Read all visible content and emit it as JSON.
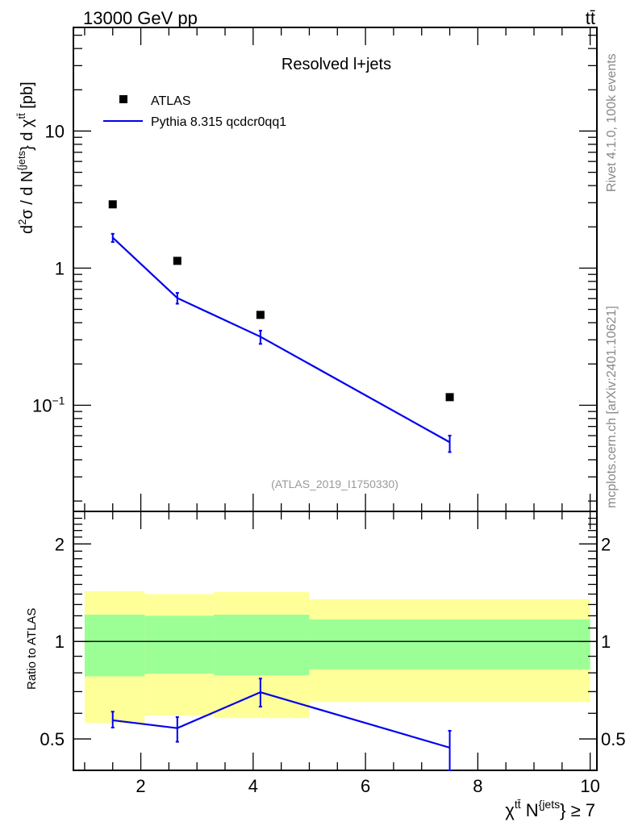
{
  "header": {
    "left": "13000 GeV pp",
    "right": "tt̄"
  },
  "side_labels": {
    "rivet": "Rivet 4.1.0,  100k events",
    "mcplots": "mcplots.cern.ch [arXiv:2401.10621]"
  },
  "colors": {
    "data": "#000000",
    "mc": "#0000ee",
    "band_inner": "#9cff96",
    "band_outer": "#ffff99"
  },
  "chart_data": [
    {
      "type": "scatter",
      "title": "Resolved l+jets",
      "annotation": "(ATLAS_2019_I1750330)",
      "ylabel_parts": {
        "a": "d",
        "a_sup": "2",
        "b": "σ /  d N",
        "b_sup": "{jets",
        "c": "} d χ",
        "c_sup": "tt̄",
        "d": " [pb]"
      },
      "yscale": "log",
      "xlim": [
        0.8,
        10.12
      ],
      "ylim": [
        0.0168,
        57
      ],
      "yticks": [
        {
          "v": 0.1,
          "label": "10",
          "sup": "−1"
        },
        {
          "v": 1,
          "label": "1",
          "sup": ""
        },
        {
          "v": 10,
          "label": "10",
          "sup": ""
        }
      ],
      "legend": {
        "placement": "top-left",
        "entries": [
          "ATLAS",
          "Pythia 8.315 qcdcr0qq1"
        ]
      },
      "series": [
        {
          "name": "ATLAS",
          "kind": "markers",
          "x": [
            1.5,
            2.65,
            4.13,
            7.5
          ],
          "y": [
            2.92,
            1.13,
            0.456,
            0.1145
          ]
        },
        {
          "name": "Pythia 8.315 qcdcr0qq1",
          "kind": "line",
          "x": [
            1.5,
            2.65,
            4.13,
            7.5
          ],
          "y": [
            1.67,
            0.605,
            0.316,
            0.0537
          ],
          "yerr_low": [
            1.55,
            0.55,
            0.28,
            0.0455
          ],
          "yerr_high": [
            1.78,
            0.66,
            0.35,
            0.06
          ]
        }
      ]
    },
    {
      "type": "line",
      "ylabel": "Ratio to ATLAS",
      "xlabel_parts": {
        "a": "χ",
        "a_sup": "tt̄",
        "b": " N",
        "b_sup": "{jets",
        "c": "} ≥ 7"
      },
      "yscale": "log",
      "xlim": [
        0.8,
        10.12
      ],
      "ylim": [
        0.4,
        2.52
      ],
      "xticks": [
        2,
        4,
        6,
        8,
        10
      ],
      "yticks": [
        {
          "v": 0.5,
          "label": "0.5"
        },
        {
          "v": 1,
          "label": "1"
        },
        {
          "v": 2,
          "label": "2"
        }
      ],
      "bins": [
        [
          1,
          2.07
        ],
        [
          2.07,
          3.3
        ],
        [
          3.3,
          5
        ],
        [
          5,
          10
        ]
      ],
      "band_inner": {
        "low": [
          0.78,
          0.795,
          0.786,
          0.82
        ],
        "high": [
          1.21,
          1.2,
          1.21,
          1.17
        ]
      },
      "band_outer": {
        "low": [
          0.56,
          0.59,
          0.58,
          0.65
        ],
        "high": [
          1.43,
          1.4,
          1.42,
          1.35
        ]
      },
      "series": [
        {
          "name": "Pythia 8.315 qcdcr0qq1 / ATLAS",
          "x": [
            1.5,
            2.65,
            4.13,
            7.5
          ],
          "y": [
            0.571,
            0.54,
            0.697,
            0.47
          ],
          "yerr_low": [
            0.542,
            0.49,
            0.629,
            0.4
          ],
          "yerr_high": [
            0.607,
            0.584,
            0.768,
            0.53
          ]
        }
      ]
    }
  ]
}
